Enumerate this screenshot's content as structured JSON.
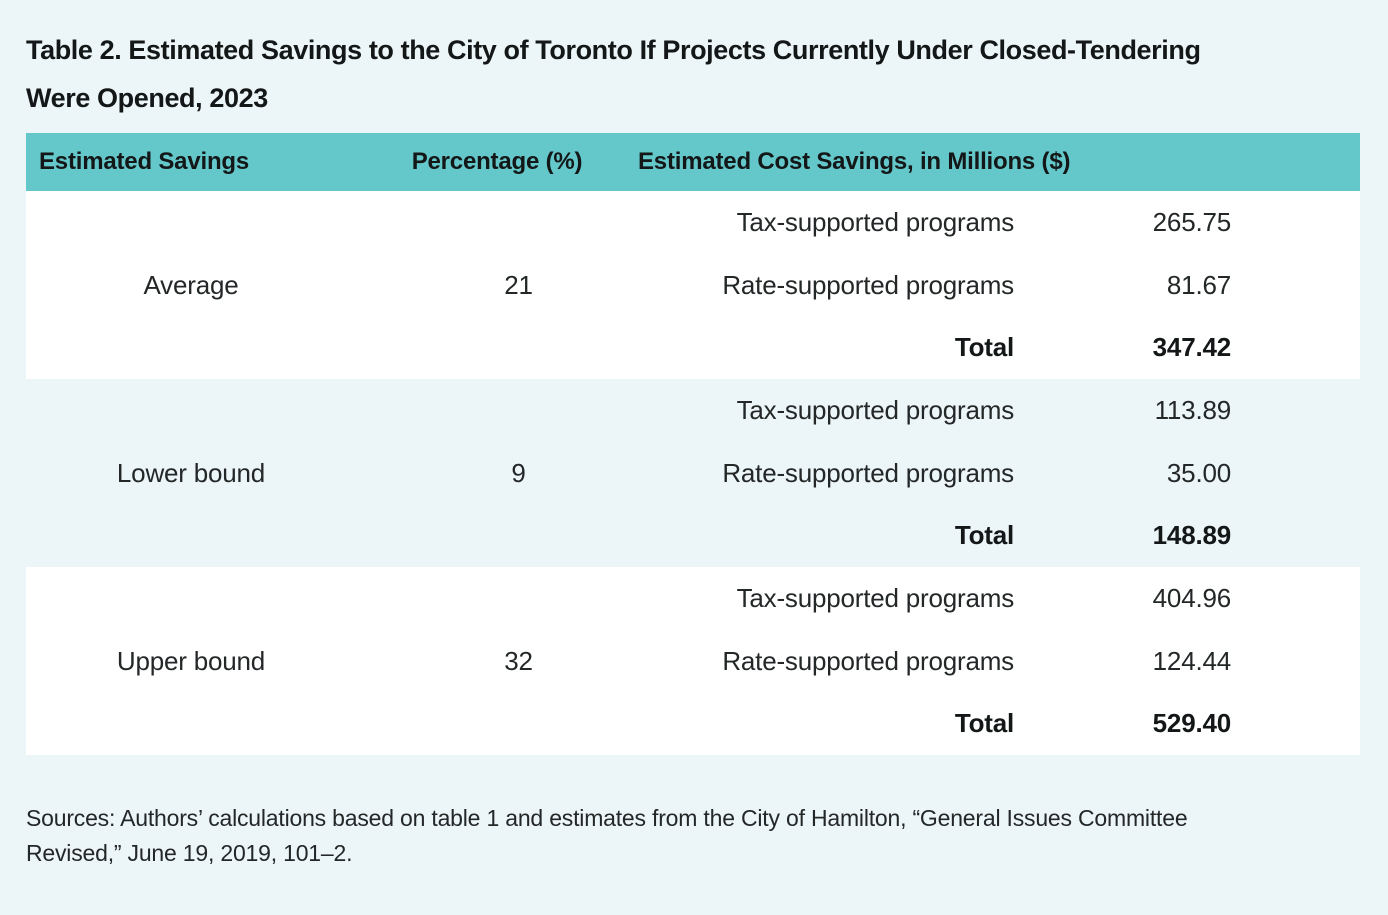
{
  "title": {
    "lines": [
      "Table 2. Estimated Savings to the City of Toronto If Projects Currently Under Closed-Tendering",
      "Were Opened, 2023"
    ]
  },
  "table": {
    "headers": [
      "Estimated Savings",
      "Percentage (%)",
      "Estimated Cost Savings, in Millions ($)"
    ],
    "groups": [
      {
        "label": "Average",
        "percentage": "21",
        "rows": [
          {
            "program": "Tax-supported programs",
            "value": "265.75"
          },
          {
            "program": "Rate-supported programs",
            "value": "81.67"
          },
          {
            "program": "Total",
            "value": "347.42"
          }
        ]
      },
      {
        "label": "Lower bound",
        "percentage": "9",
        "rows": [
          {
            "program": "Tax-supported programs",
            "value": "113.89"
          },
          {
            "program": "Rate-supported programs",
            "value": "35.00"
          },
          {
            "program": "Total",
            "value": "148.89"
          }
        ]
      },
      {
        "label": "Upper bound",
        "percentage": "32",
        "rows": [
          {
            "program": "Tax-supported programs",
            "value": "404.96"
          },
          {
            "program": "Rate-supported programs",
            "value": "124.44"
          },
          {
            "program": "Total",
            "value": "529.40"
          }
        ]
      }
    ]
  },
  "sources": {
    "lines": [
      "Sources: Authors’ calculations based on table 1 and estimates from the City of Hamilton, “General Issues Committee",
      "Revised,” June 19, 2019, 101–2."
    ]
  },
  "colors": {
    "page_bg": "#ecf5f7",
    "header_bg": "#64c7c9",
    "band_white": "#ffffff",
    "ink": "#141718",
    "ink_body": "#232728"
  }
}
